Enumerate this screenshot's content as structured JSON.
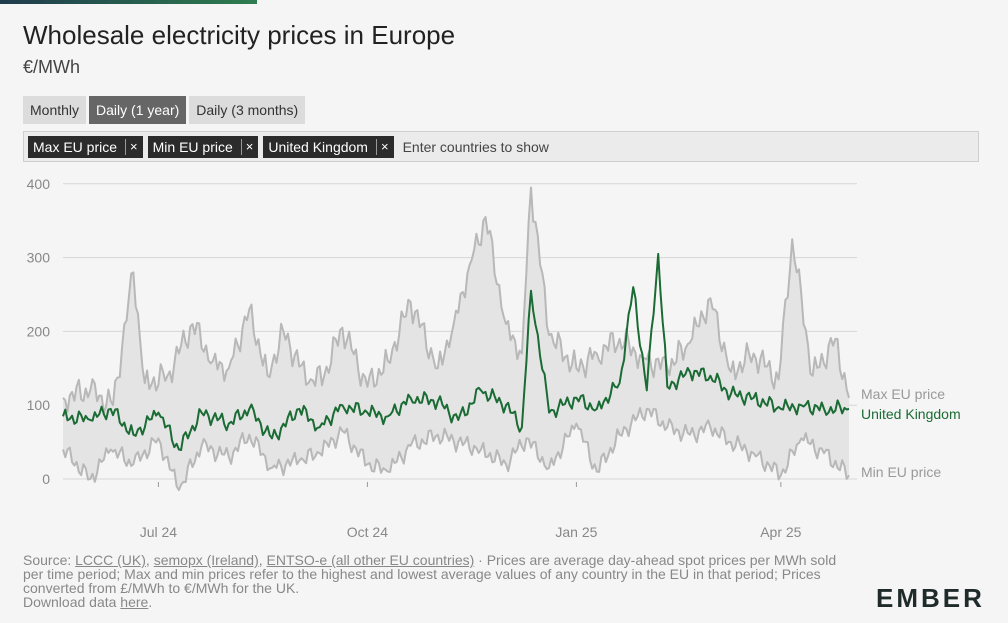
{
  "header": {
    "title": "Wholesale electricity prices in Europe",
    "subtitle": "€/MWh"
  },
  "tabs": [
    {
      "label": "Monthly",
      "active": false
    },
    {
      "label": "Daily (1 year)",
      "active": true
    },
    {
      "label": "Daily (3 months)",
      "active": false
    }
  ],
  "filter": {
    "chips": [
      "Max EU price",
      "Min EU price",
      "United Kingdom"
    ],
    "remove_symbol": "×",
    "placeholder": "Enter countries to show"
  },
  "footer": {
    "source_prefix": "Source: ",
    "link1": "LCCC (UK)",
    "comma1": ", ",
    "link2": "semopx (Ireland)",
    "comma2": ", ",
    "link3": "ENTSO-e (all other EU countries)",
    "note": " · Prices are average day-ahead spot prices per MWh sold per time period; Max and min prices refer to the highest and lowest average values of any country in the EU in that period; Prices converted from £/MWh to €/MWh for the UK.",
    "download_prefix": "Download data ",
    "download_link": "here",
    "download_suffix": "."
  },
  "logo": {
    "text": "EMBER"
  },
  "colors": {
    "accent_bar": "#1f3b4d",
    "accent_bar_green": "#2e7d4f",
    "uk_line": "#1a6b34",
    "band_fill": "#e4e4e4",
    "band_line": "#b8b8b8",
    "grid": "#d6d6d6"
  },
  "chart_data": {
    "type": "line",
    "title": "Wholesale electricity prices in Europe",
    "ylabel": "€/MWh",
    "x_start": "2024-05-20",
    "x_end": "2025-05-01",
    "ylim": [
      -20,
      400
    ],
    "yticks": [
      0,
      100,
      200,
      300,
      400
    ],
    "xticks": [
      {
        "label": "Jul 24",
        "date": "2024-07-01"
      },
      {
        "label": "Oct 24",
        "date": "2024-10-01"
      },
      {
        "label": "Jan 25",
        "date": "2025-01-01"
      },
      {
        "label": "Apr 25",
        "date": "2025-04-01"
      }
    ],
    "grid": true,
    "legend": "right-end labels",
    "series": [
      {
        "name": "Max EU price",
        "x": [
          "2024-05-20",
          "2024-06-01",
          "2024-06-11",
          "2024-06-20",
          "2024-06-25",
          "2024-07-05",
          "2024-07-16",
          "2024-07-25",
          "2024-08-01",
          "2024-08-10",
          "2024-08-18",
          "2024-08-25",
          "2024-09-05",
          "2024-09-12",
          "2024-09-20",
          "2024-10-01",
          "2024-10-10",
          "2024-10-20",
          "2024-11-01",
          "2024-11-08",
          "2024-11-15",
          "2024-11-22",
          "2024-12-01",
          "2024-12-08",
          "2024-12-12",
          "2024-12-20",
          "2025-01-01",
          "2025-01-10",
          "2025-01-20",
          "2025-01-30",
          "2025-02-10",
          "2025-02-20",
          "2025-03-01",
          "2025-03-10",
          "2025-03-20",
          "2025-03-31",
          "2025-04-06",
          "2025-04-15",
          "2025-04-25",
          "2025-05-01"
        ],
        "values": [
          110,
          120,
          100,
          280,
          130,
          140,
          210,
          160,
          150,
          230,
          140,
          200,
          130,
          140,
          205,
          125,
          160,
          240,
          150,
          210,
          290,
          355,
          210,
          170,
          395,
          195,
          150,
          170,
          190,
          165,
          150,
          185,
          245,
          145,
          170,
          135,
          325,
          140,
          190,
          110
        ]
      },
      {
        "name": "Min EU price",
        "x": [
          "2024-05-20",
          "2024-06-01",
          "2024-06-10",
          "2024-06-20",
          "2024-07-01",
          "2024-07-10",
          "2024-07-20",
          "2024-08-01",
          "2024-08-10",
          "2024-08-20",
          "2024-09-01",
          "2024-09-10",
          "2024-09-20",
          "2024-10-01",
          "2024-10-10",
          "2024-10-20",
          "2024-11-01",
          "2024-11-10",
          "2024-11-20",
          "2024-12-01",
          "2024-12-10",
          "2024-12-20",
          "2025-01-01",
          "2025-01-10",
          "2025-01-20",
          "2025-02-01",
          "2025-02-10",
          "2025-02-20",
          "2025-03-01",
          "2025-03-10",
          "2025-03-20",
          "2025-04-01",
          "2025-04-10",
          "2025-04-20",
          "2025-05-01"
        ],
        "values": [
          40,
          0,
          40,
          20,
          55,
          -15,
          45,
          30,
          60,
          15,
          25,
          35,
          65,
          20,
          10,
          45,
          60,
          50,
          40,
          20,
          55,
          15,
          75,
          10,
          60,
          95,
          70,
          60,
          70,
          50,
          35,
          5,
          55,
          35,
          5
        ]
      },
      {
        "name": "United Kingdom",
        "x": [
          "2024-05-20",
          "2024-06-01",
          "2024-06-10",
          "2024-06-20",
          "2024-07-01",
          "2024-07-10",
          "2024-07-20",
          "2024-08-01",
          "2024-08-10",
          "2024-08-20",
          "2024-09-01",
          "2024-09-10",
          "2024-09-20",
          "2024-10-01",
          "2024-10-10",
          "2024-10-20",
          "2024-11-01",
          "2024-11-10",
          "2024-11-20",
          "2024-12-01",
          "2024-12-08",
          "2024-12-12",
          "2024-12-20",
          "2025-01-01",
          "2025-01-10",
          "2025-01-20",
          "2025-01-26",
          "2025-02-01",
          "2025-02-06",
          "2025-02-10",
          "2025-02-20",
          "2025-03-01",
          "2025-03-10",
          "2025-03-20",
          "2025-04-01",
          "2025-04-10",
          "2025-04-20",
          "2025-05-01"
        ],
        "values": [
          85,
          80,
          95,
          60,
          90,
          40,
          90,
          75,
          95,
          55,
          95,
          70,
          100,
          90,
          85,
          110,
          105,
          80,
          120,
          100,
          70,
          255,
          90,
          110,
          95,
          130,
          260,
          120,
          305,
          125,
          145,
          140,
          115,
          110,
          95,
          100,
          95,
          95
        ]
      }
    ]
  }
}
